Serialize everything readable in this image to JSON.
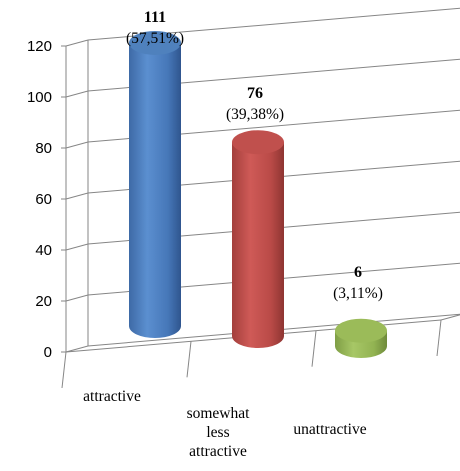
{
  "chart_data": {
    "type": "bar",
    "style": "3d-cylinder",
    "categories": [
      "attractive",
      "somewhat less attractive",
      "unattractive"
    ],
    "category_lines": [
      [
        "attractive"
      ],
      [
        "somewhat",
        "less",
        "attractive"
      ],
      [
        "unattractive"
      ]
    ],
    "values": [
      111,
      76,
      6
    ],
    "data_labels": [
      {
        "value": "111",
        "percent": "(57,51%)"
      },
      {
        "value": "76",
        "percent": "(39,38%)"
      },
      {
        "value": "6",
        "percent": "(3,11%)"
      }
    ],
    "colors": [
      "#4f81bd",
      "#c0504d",
      "#9bbb59"
    ],
    "ylim": [
      0,
      120
    ],
    "yticks": [
      0,
      20,
      40,
      60,
      80,
      100,
      120
    ],
    "grid": true,
    "legend": "none",
    "title": "",
    "xlabel": "",
    "ylabel": ""
  }
}
